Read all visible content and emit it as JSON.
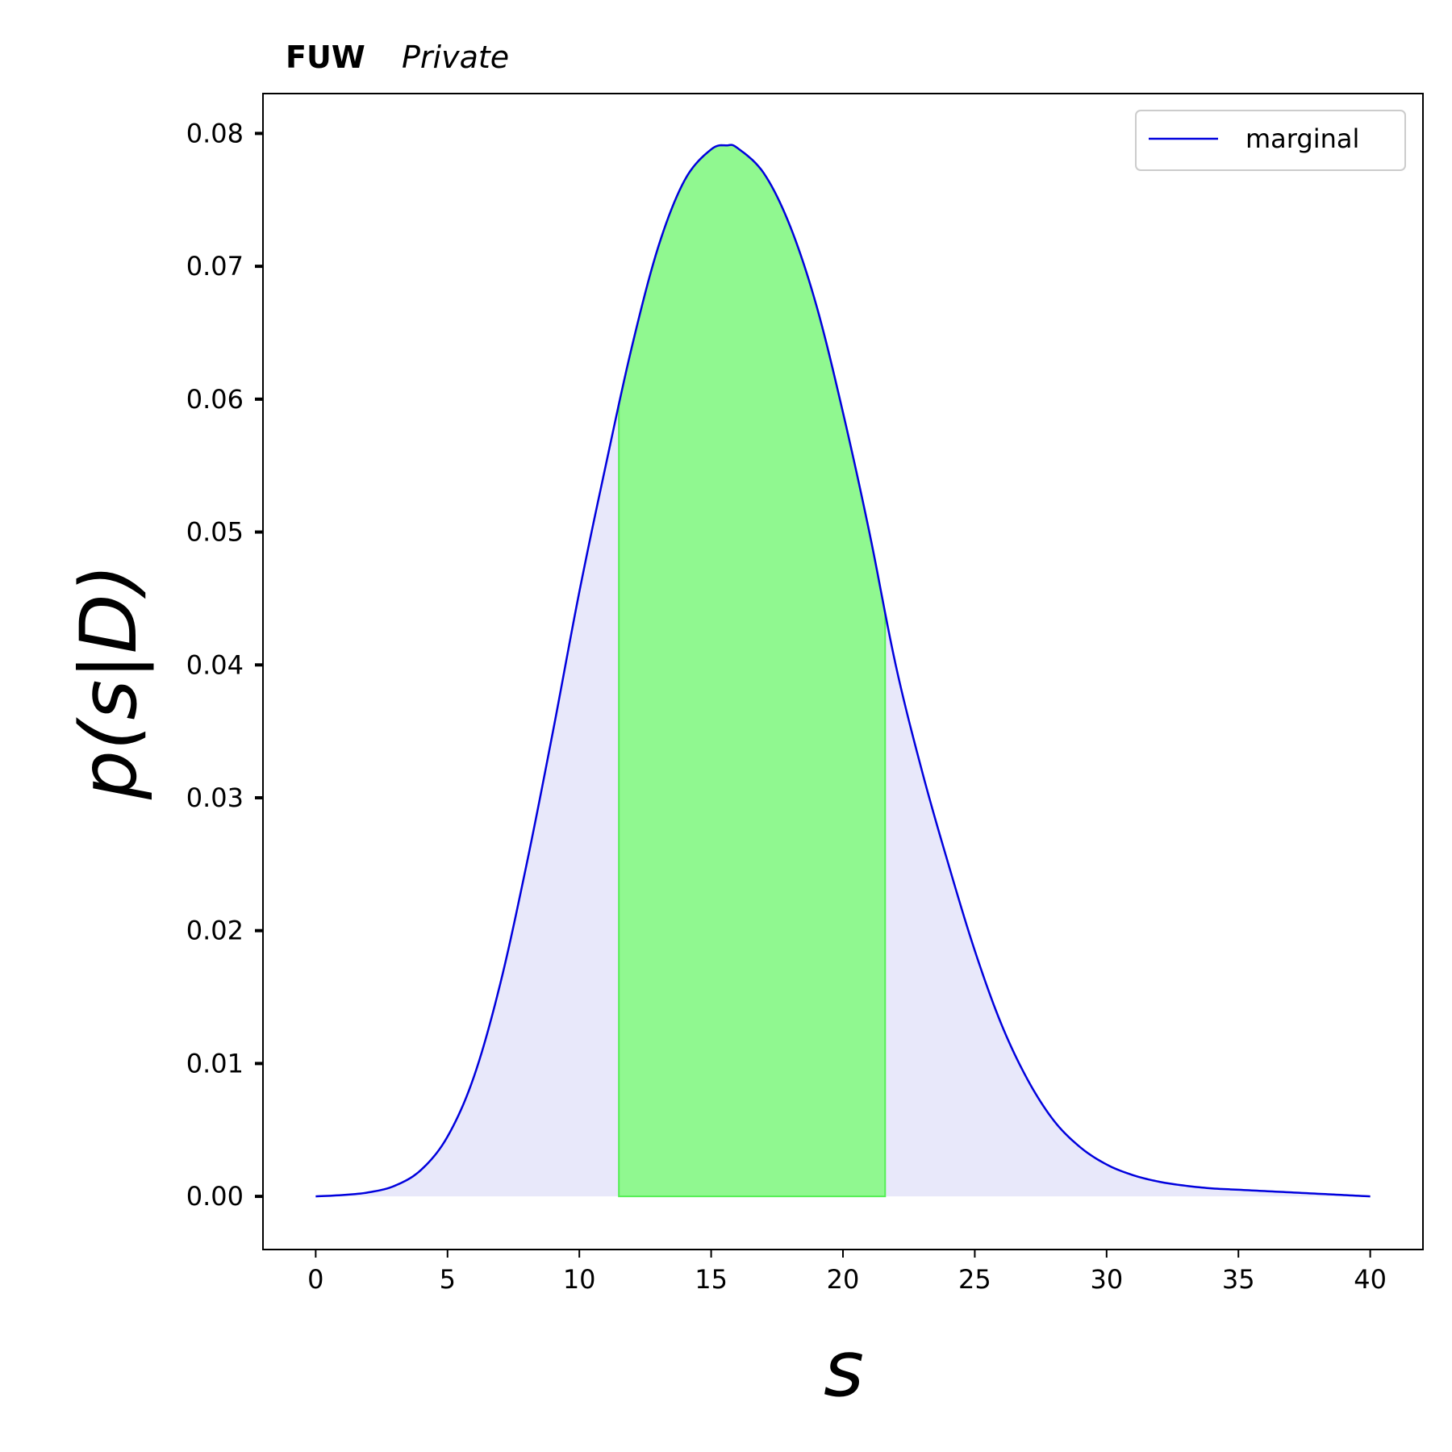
{
  "chart_data": {
    "type": "area",
    "title_bold": "FUW",
    "title_italic": "Private",
    "xlabel": "s",
    "ylabel": "p(s|D)",
    "xlim": [
      -2,
      42
    ],
    "ylim": [
      -0.004,
      0.083
    ],
    "xticks": [
      0,
      5,
      10,
      15,
      20,
      25,
      30,
      35,
      40
    ],
    "xtick_labels": [
      "0",
      "5",
      "10",
      "15",
      "20",
      "25",
      "30",
      "35",
      "40"
    ],
    "yticks": [
      0.0,
      0.01,
      0.02,
      0.03,
      0.04,
      0.05,
      0.06,
      0.07,
      0.08
    ],
    "ytick_labels": [
      "0.00",
      "0.01",
      "0.02",
      "0.03",
      "0.04",
      "0.05",
      "0.06",
      "0.07",
      "0.08"
    ],
    "legend_position": "top-right",
    "series": [
      {
        "name": "marginal",
        "color": "#0000dd",
        "x": [
          0,
          1,
          2,
          3,
          4,
          5,
          6,
          7,
          8,
          9,
          10,
          11,
          12,
          13,
          14,
          15,
          15.6,
          16,
          17,
          18,
          19,
          20,
          21,
          22,
          23,
          24,
          25,
          26,
          27,
          28,
          29,
          30,
          31,
          32,
          33,
          34,
          35,
          36,
          37,
          38,
          39,
          40
        ],
        "y": [
          0.0,
          0.0001,
          0.0003,
          0.0008,
          0.002,
          0.0045,
          0.009,
          0.016,
          0.025,
          0.035,
          0.0455,
          0.055,
          0.064,
          0.0715,
          0.0765,
          0.0788,
          0.0791,
          0.0789,
          0.077,
          0.073,
          0.067,
          0.059,
          0.05,
          0.04,
          0.032,
          0.025,
          0.0185,
          0.013,
          0.0088,
          0.0057,
          0.0037,
          0.0024,
          0.0016,
          0.0011,
          0.0008,
          0.0006,
          0.0005,
          0.0004,
          0.0003,
          0.0002,
          0.0001,
          0.0
        ]
      }
    ],
    "fill_full_color": "#e8e8fa",
    "highlight_interval": [
      11.5,
      21.6
    ],
    "highlight_color": "#90f890",
    "highlight_edge_color": "#55ee55"
  }
}
